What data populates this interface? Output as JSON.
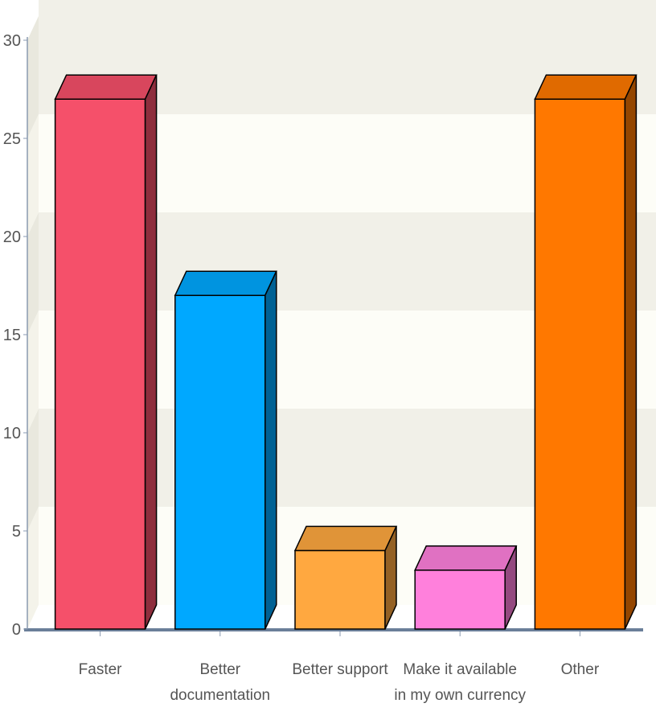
{
  "chart_data": {
    "type": "bar",
    "categories": [
      [
        "Faster"
      ],
      [
        "Better",
        "documentation"
      ],
      [
        "Better support"
      ],
      [
        "Make it available",
        "in my own currency"
      ],
      [
        "Other"
      ]
    ],
    "values": [
      27,
      17,
      4,
      3,
      27
    ],
    "colors": [
      "#f5506a",
      "#00a8ff",
      "#ffa840",
      "#ff80dc",
      "#ff7800"
    ],
    "ylim": [
      0,
      30
    ],
    "yticks": [
      "0",
      "5",
      "10",
      "15",
      "20",
      "25",
      "30"
    ],
    "ytick_values": [
      0,
      5,
      10,
      15,
      20,
      25,
      30
    ],
    "grid": true,
    "title": "",
    "xlabel": "",
    "ylabel": ""
  }
}
